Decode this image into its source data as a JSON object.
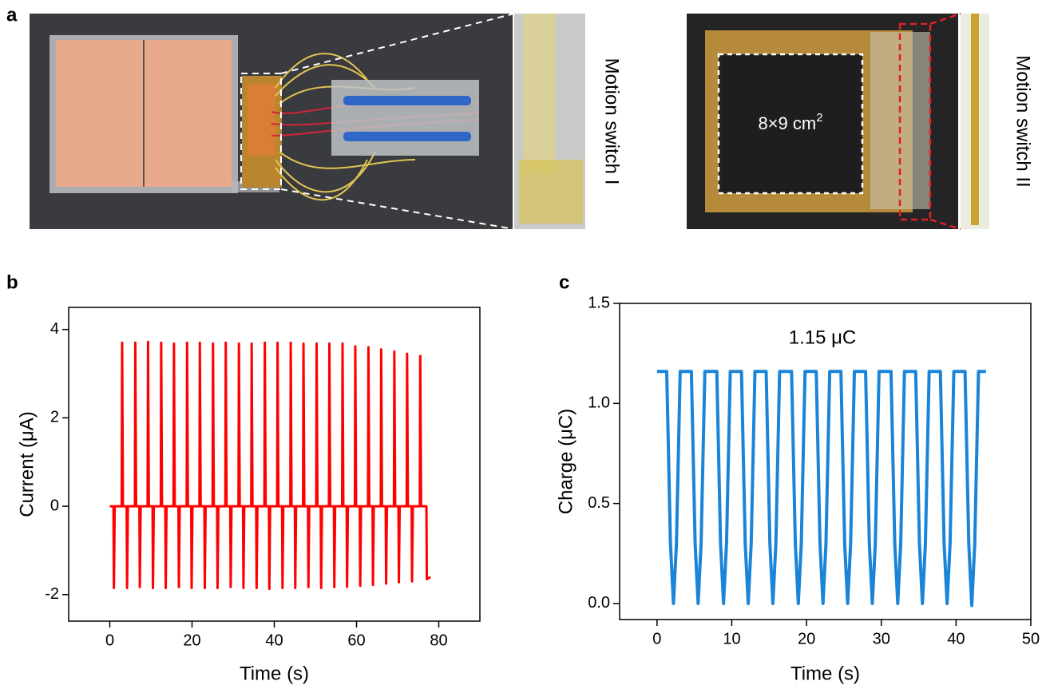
{
  "panel_a": {
    "label": "a",
    "caption_left": "Motion switch I",
    "caption_right": "Motion switch II",
    "area_label": "8×9 cm",
    "area_label_sup": "2"
  },
  "chart_data": [
    {
      "type": "line",
      "panel_label": "b",
      "x_label": "Time (s)",
      "y_label": "Current (μA)",
      "xlim": [
        -10,
        90
      ],
      "xticks": [
        0,
        20,
        40,
        60,
        80
      ],
      "ylim": [
        -2.6,
        4.5
      ],
      "yticks": [
        -2,
        0,
        2,
        4
      ],
      "series": [
        {
          "color": "#ff0000",
          "x": [
            0,
            0.9,
            1.0,
            1.2,
            2.9,
            3.0,
            3.2,
            4.1,
            4.2,
            4.4,
            6.1,
            6.2,
            6.4,
            7.2,
            7.3,
            7.5,
            9.2,
            9.3,
            9.5,
            10.4,
            10.5,
            10.7,
            12.4,
            12.5,
            12.7,
            13.5,
            13.6,
            13.8,
            15.5,
            15.6,
            15.8,
            16.7,
            16.8,
            17.0,
            18.7,
            18.8,
            19.0,
            19.8,
            19.9,
            20.1,
            21.8,
            21.9,
            22.1,
            23.0,
            23.1,
            23.3,
            25.0,
            25.1,
            25.3,
            26.1,
            26.2,
            26.4,
            28.1,
            28.2,
            28.4,
            29.3,
            29.4,
            29.6,
            31.3,
            31.4,
            31.6,
            32.4,
            32.5,
            32.7,
            34.4,
            34.5,
            34.7,
            35.6,
            35.7,
            35.9,
            37.6,
            37.7,
            37.9,
            38.7,
            38.8,
            39.0,
            40.7,
            40.8,
            41.0,
            41.9,
            42.0,
            42.2,
            43.9,
            44.0,
            44.2,
            45.0,
            45.1,
            45.3,
            47.0,
            47.1,
            47.3,
            48.2,
            48.3,
            48.5,
            50.2,
            50.3,
            50.5,
            51.3,
            51.4,
            51.6,
            53.3,
            53.4,
            53.6,
            54.5,
            54.6,
            54.8,
            56.5,
            56.6,
            56.8,
            57.6,
            57.7,
            57.9,
            59.6,
            59.7,
            59.9,
            60.8,
            60.9,
            61.1,
            62.8,
            62.9,
            63.1,
            63.9,
            64.0,
            64.2,
            65.9,
            66.0,
            66.2,
            67.1,
            67.2,
            67.4,
            69.1,
            69.2,
            69.4,
            70.2,
            70.3,
            70.5,
            72.2,
            72.3,
            72.5,
            73.4,
            73.5,
            73.7,
            75.4,
            75.5,
            75.7,
            77.0,
            77.1,
            78.0
          ],
          "values": [
            0,
            0,
            -1.85,
            0,
            0,
            3.7,
            0,
            0,
            -1.85,
            0,
            0,
            3.7,
            0,
            0,
            -1.83,
            0,
            0,
            3.72,
            0,
            0,
            -1.85,
            0,
            0,
            3.7,
            0,
            0,
            -1.85,
            0,
            0,
            3.68,
            0,
            0,
            -1.83,
            0,
            0,
            3.7,
            0,
            0,
            -1.85,
            0,
            0,
            3.7,
            0,
            0,
            -1.85,
            0,
            0,
            3.68,
            0,
            0,
            -1.85,
            0,
            0,
            3.7,
            0,
            0,
            -1.83,
            0,
            0,
            3.68,
            0,
            0,
            -1.85,
            0,
            0,
            3.68,
            0,
            0,
            -1.85,
            0,
            0,
            3.7,
            0,
            0,
            -1.87,
            0,
            0,
            3.7,
            0,
            0,
            -1.85,
            0,
            0,
            3.7,
            0,
            0,
            -1.85,
            0,
            0,
            3.68,
            0,
            0,
            -1.83,
            0,
            0,
            3.68,
            0,
            0,
            -1.85,
            0,
            0,
            3.68,
            0,
            0,
            -1.83,
            0,
            0,
            3.68,
            0,
            0,
            -1.82,
            0,
            0,
            3.62,
            0,
            0,
            -1.8,
            0,
            0,
            3.6,
            0,
            0,
            -1.78,
            0,
            0,
            3.55,
            0,
            0,
            -1.75,
            0,
            0,
            3.5,
            0,
            0,
            -1.72,
            0,
            0,
            3.45,
            0,
            0,
            -1.7,
            0,
            0,
            3.4,
            0,
            0,
            -1.65,
            -1.6
          ]
        }
      ]
    },
    {
      "type": "line",
      "panel_label": "c",
      "x_label": "Time (s)",
      "y_label": "Charge (μC)",
      "annotation": "1.15 μC",
      "xlim": [
        -5,
        50
      ],
      "xticks": [
        0,
        10,
        20,
        30,
        40,
        50
      ],
      "ylim": [
        -0.08,
        1.5
      ],
      "yticks": [
        {
          "value": 0,
          "label": "0.0"
        },
        {
          "value": 0.5,
          "label": "0.5"
        },
        {
          "value": 1,
          "label": "1.0"
        },
        {
          "value": 1.5,
          "label": "1.5"
        }
      ],
      "series": [
        {
          "color": "#1a84d8",
          "x": [
            0,
            1.3,
            1.8,
            2.2,
            2.6,
            3.1,
            4.6,
            5.1,
            5.5,
            5.9,
            6.4,
            8.0,
            8.5,
            8.9,
            9.3,
            9.8,
            11.3,
            11.8,
            12.2,
            12.6,
            13.1,
            14.6,
            15.1,
            15.5,
            15.9,
            16.4,
            18.0,
            18.5,
            18.9,
            19.3,
            19.8,
            21.3,
            21.8,
            22.2,
            22.6,
            23.1,
            24.6,
            25.1,
            25.5,
            25.9,
            26.4,
            27.9,
            28.4,
            28.8,
            29.2,
            29.7,
            31.3,
            31.8,
            32.2,
            32.6,
            33.1,
            34.6,
            35.1,
            35.5,
            35.9,
            36.4,
            37.9,
            38.4,
            38.8,
            39.2,
            39.7,
            41.2,
            41.7,
            42.1,
            42.5,
            43.0,
            44.0
          ],
          "values": [
            1.16,
            1.16,
            0.3,
            0,
            0.3,
            1.16,
            1.16,
            0.3,
            0,
            0.3,
            1.16,
            1.16,
            0.3,
            0,
            0.3,
            1.16,
            1.16,
            0.3,
            0,
            0.3,
            1.16,
            1.16,
            0.3,
            0,
            0.3,
            1.16,
            1.16,
            0.3,
            0,
            0.3,
            1.16,
            1.16,
            0.3,
            0,
            0.3,
            1.16,
            1.16,
            0.3,
            0,
            0.3,
            1.16,
            1.16,
            0.3,
            0,
            0.3,
            1.16,
            1.16,
            0.3,
            0,
            0.3,
            1.16,
            1.16,
            0.3,
            0,
            0.3,
            1.16,
            1.16,
            0.3,
            0,
            0.3,
            1.16,
            1.16,
            0.3,
            -0.01,
            0.3,
            1.16,
            1.16
          ]
        }
      ]
    }
  ]
}
